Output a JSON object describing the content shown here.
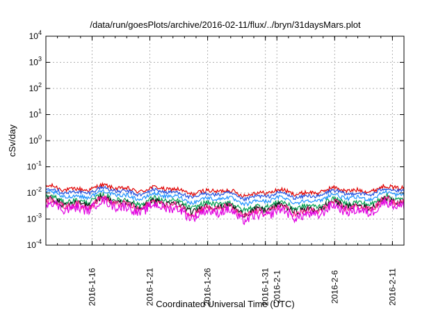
{
  "chart_data": {
    "type": "line",
    "title": "/data/run/goesPlots/archive/2016-02-11/flux/../bryn/31daysMars.plot",
    "xlabel": "Coordinated Universal Time (UTC)",
    "ylabel": "cSv/day",
    "x_range": [
      "2016-01-12",
      "2016-02-12"
    ],
    "ylim": [
      0.0001,
      10000
    ],
    "y_scale": "log",
    "grid": true,
    "x_ticks": [
      {
        "date": "2016-01-16",
        "label": "2016-1-16"
      },
      {
        "date": "2016-01-21",
        "label": "2016-1-21"
      },
      {
        "date": "2016-01-26",
        "label": "2016-1-26"
      },
      {
        "date": "2016-01-31",
        "label": "2016-1-31"
      },
      {
        "date": "2016-02-01",
        "label": "2016-2-1"
      },
      {
        "date": "2016-02-06",
        "label": "2016-2-6"
      },
      {
        "date": "2016-02-11",
        "label": "2016-2-11"
      }
    ],
    "y_ticks": [
      {
        "value": 0.0001,
        "base": "10",
        "exp": "-4"
      },
      {
        "value": 0.001,
        "base": "10",
        "exp": "-3"
      },
      {
        "value": 0.01,
        "base": "10",
        "exp": "-2"
      },
      {
        "value": 0.1,
        "base": "10",
        "exp": "-1"
      },
      {
        "value": 1,
        "base": "10",
        "exp": "0"
      },
      {
        "value": 10,
        "base": "10",
        "exp": "1"
      },
      {
        "value": 100,
        "base": "10",
        "exp": "2"
      },
      {
        "value": 1000,
        "base": "10",
        "exp": "3"
      },
      {
        "value": 10000,
        "base": "10",
        "exp": "4"
      }
    ],
    "series": [
      {
        "color": "#e00000",
        "base": 0.0125,
        "noise": 0.08
      },
      {
        "color": "#1f4fe0",
        "base": 0.0095,
        "noise": 0.07
      },
      {
        "color": "#1a90ff",
        "base": 0.0065,
        "noise": 0.07
      },
      {
        "color": "#00a050",
        "base": 0.0042,
        "noise": 0.1
      },
      {
        "color": "#101010",
        "base": 0.0032,
        "noise": 0.12
      },
      {
        "color": "#ff2090",
        "base": 0.0028,
        "noise": 0.14
      },
      {
        "color": "#e000e0",
        "base": 0.0021,
        "noise": 0.18
      }
    ]
  }
}
